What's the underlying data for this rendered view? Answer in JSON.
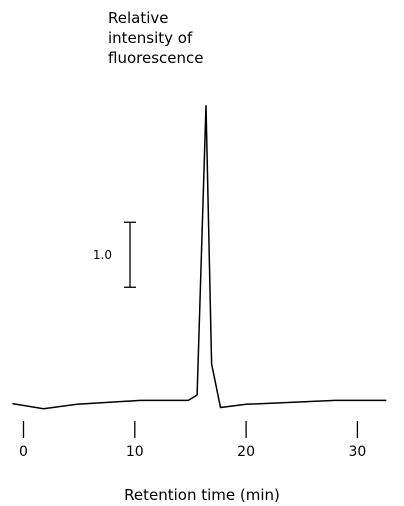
{
  "chart_data": {
    "type": "line",
    "ylabel": "Relative\nintensity of\nfluorescence",
    "xlabel": "Retention time (min)",
    "x_ticks": [
      0,
      10,
      20,
      30
    ],
    "xlim": [
      -1,
      33
    ],
    "ylim": [
      0,
      4.5
    ],
    "scale_bar": {
      "label": "1.0",
      "value": 1.0,
      "y_from": 1.75,
      "y_to": 2.75
    },
    "series": [
      {
        "x": [
          -1,
          1.8,
          4.8,
          10.5,
          14.8,
          15.6,
          16.4,
          16.9,
          17.7,
          20,
          28,
          32.6
        ],
        "y": [
          -0.04,
          -0.12,
          -0.05,
          0.01,
          0.01,
          0.09,
          4.55,
          0.57,
          -0.1,
          -0.05,
          0.01,
          0.01
        ]
      }
    ]
  }
}
